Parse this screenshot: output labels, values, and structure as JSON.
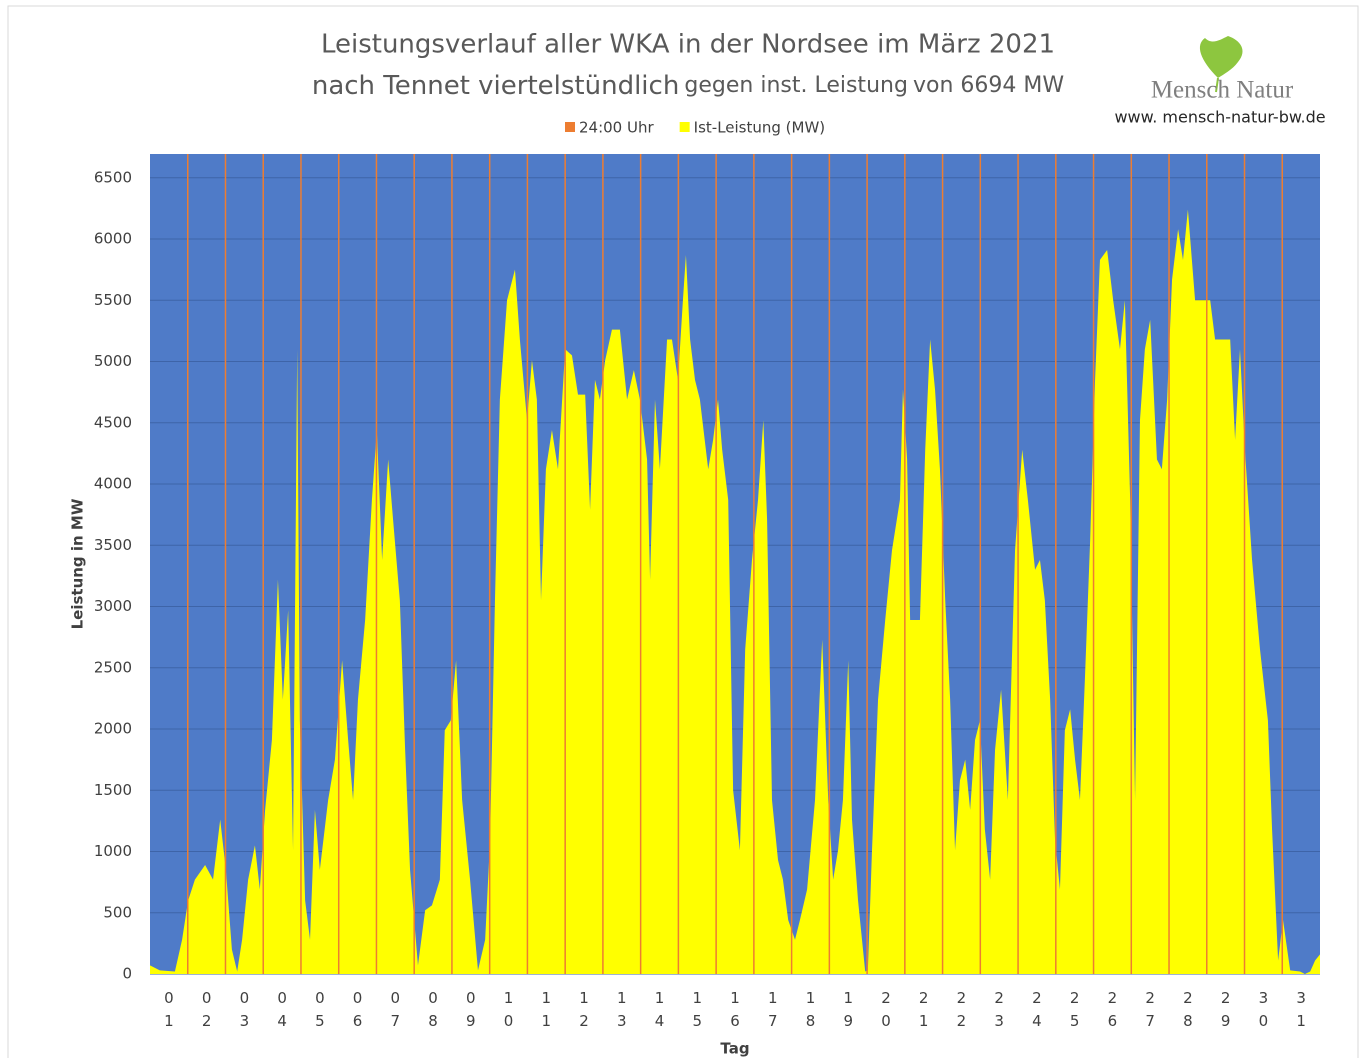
{
  "chart_data": {
    "type": "area",
    "title": "Leistungsverlauf aller WKA in der Nordsee im März 2021",
    "subtitle": [
      "nach Tennet viertelstündlich",
      "gegen inst. Leistung",
      "von 6694 MW"
    ],
    "logo": {
      "name": "Mensch Natur",
      "url": "www. mensch-natur-bw.de"
    },
    "x_label": "Tag",
    "y_label": "Leistung in MW",
    "xlim": [
      0,
      31
    ],
    "xticks": [
      {
        "value": 0.5,
        "label": "01"
      },
      {
        "value": 1.5,
        "label": "02"
      },
      {
        "value": 2.5,
        "label": "03"
      },
      {
        "value": 3.5,
        "label": "04"
      },
      {
        "value": 4.5,
        "label": "05"
      },
      {
        "value": 5.5,
        "label": "06"
      },
      {
        "value": 6.5,
        "label": "07"
      },
      {
        "value": 7.5,
        "label": "08"
      },
      {
        "value": 8.5,
        "label": "09"
      },
      {
        "value": 9.5,
        "label": "10"
      },
      {
        "value": 10.5,
        "label": "11"
      },
      {
        "value": 11.5,
        "label": "12"
      },
      {
        "value": 12.5,
        "label": "13"
      },
      {
        "value": 13.5,
        "label": "14"
      },
      {
        "value": 14.5,
        "label": "15"
      },
      {
        "value": 15.5,
        "label": "16"
      },
      {
        "value": 16.5,
        "label": "17"
      },
      {
        "value": 17.5,
        "label": "18"
      },
      {
        "value": 18.5,
        "label": "19"
      },
      {
        "value": 19.5,
        "label": "20"
      },
      {
        "value": 20.5,
        "label": "21"
      },
      {
        "value": 21.5,
        "label": "22"
      },
      {
        "value": 22.5,
        "label": "23"
      },
      {
        "value": 23.5,
        "label": "24"
      },
      {
        "value": 24.5,
        "label": "25"
      },
      {
        "value": 25.5,
        "label": "26"
      },
      {
        "value": 26.5,
        "label": "27"
      },
      {
        "value": 27.5,
        "label": "28"
      },
      {
        "value": 28.5,
        "label": "29"
      },
      {
        "value": 29.5,
        "label": "30"
      },
      {
        "value": 30.5,
        "label": "31"
      }
    ],
    "ylim": [
      0,
      6694
    ],
    "yticks": [
      0,
      500,
      1000,
      1500,
      2000,
      2500,
      3000,
      3500,
      4000,
      4500,
      5000,
      5500,
      6000,
      6500
    ],
    "grid": true,
    "background": "#4f7bc8",
    "legend": "top",
    "series": [
      {
        "name": "24:00 Uhr",
        "type": "bar",
        "color": "#ed7d31",
        "x": [
          1,
          2,
          3,
          4,
          5,
          6,
          7,
          8,
          9,
          10,
          11,
          12,
          13,
          14,
          15,
          16,
          17,
          18,
          19,
          20,
          21,
          22,
          23,
          24,
          25,
          26,
          27,
          28,
          29,
          30
        ],
        "values": [
          6694,
          6694,
          6694,
          6694,
          6694,
          6694,
          6694,
          6694,
          6694,
          6694,
          6694,
          6694,
          6694,
          6694,
          6694,
          6694,
          6694,
          6694,
          6694,
          6694,
          6694,
          6694,
          6694,
          6694,
          6694,
          6694,
          6694,
          6694,
          6694,
          6694
        ]
      },
      {
        "name": "Ist-Leistung (MW)",
        "type": "area",
        "color": "#ffff00",
        "x": [
          0,
          0.26,
          0.66,
          0.85,
          1.01,
          1.19,
          1.46,
          1.67,
          1.86,
          2.01,
          2.17,
          2.31,
          2.44,
          2.6,
          2.78,
          2.91,
          3.05,
          3.23,
          3.39,
          3.52,
          3.66,
          3.79,
          3.9,
          3.97,
          4.11,
          4.24,
          4.37,
          4.5,
          4.72,
          4.9,
          5.09,
          5.25,
          5.38,
          5.51,
          5.7,
          5.88,
          6.01,
          6.15,
          6.31,
          6.44,
          6.62,
          6.76,
          6.89,
          7.1,
          7.29,
          7.47,
          7.68,
          7.81,
          7.97,
          8.11,
          8.27,
          8.48,
          8.69,
          8.88,
          9.01,
          9.14,
          9.27,
          9.46,
          9.67,
          9.8,
          9.99,
          10.12,
          10.25,
          10.36,
          10.49,
          10.65,
          10.81,
          11,
          11.18,
          11.34,
          11.53,
          11.66,
          11.79,
          11.92,
          12.06,
          12.24,
          12.45,
          12.64,
          12.82,
          12.98,
          13.17,
          13.25,
          13.38,
          13.51,
          13.7,
          13.83,
          13.99,
          14.12,
          14.2,
          14.31,
          14.44,
          14.57,
          14.79,
          14.92,
          15.05,
          15.16,
          15.32,
          15.45,
          15.63,
          15.77,
          15.95,
          16.11,
          16.25,
          16.35,
          16.48,
          16.64,
          16.77,
          16.91,
          17.09,
          17.22,
          17.41,
          17.62,
          17.81,
          17.97,
          18.1,
          18.23,
          18.36,
          18.5,
          18.6,
          18.76,
          18.95,
          19.02,
          19.13,
          19.29,
          19.48,
          19.66,
          19.87,
          19.95,
          20.06,
          20.14,
          20.4,
          20.54,
          20.67,
          20.8,
          20.93,
          21.07,
          21.2,
          21.33,
          21.46,
          21.6,
          21.73,
          21.86,
          21.99,
          22.12,
          22.26,
          22.39,
          22.55,
          22.73,
          22.92,
          23.11,
          23.26,
          23.45,
          23.58,
          23.71,
          23.85,
          23.98,
          24.11,
          24.24,
          24.38,
          24.51,
          24.64,
          24.77,
          24.91,
          25.04,
          25.17,
          25.36,
          25.52,
          25.7,
          25.83,
          25.97,
          26.1,
          26.23,
          26.36,
          26.5,
          26.68,
          26.81,
          26.95,
          27.08,
          27.24,
          27.37,
          27.5,
          27.69,
          27.9,
          28.09,
          28.22,
          28.4,
          28.62,
          28.75,
          28.88,
          29.01,
          29.2,
          29.41,
          29.62,
          29.73,
          29.89,
          30.02,
          30.21,
          30.47,
          30.6,
          30.74,
          30.87,
          31
        ],
        "values": [
          70,
          30,
          20,
          280,
          600,
          770,
          890,
          770,
          1260,
          850,
          200,
          20,
          280,
          770,
          1050,
          690,
          1340,
          1910,
          3220,
          2240,
          2970,
          1010,
          5100,
          2070,
          600,
          280,
          1340,
          850,
          1420,
          1750,
          2560,
          1910,
          1420,
          2240,
          2890,
          3870,
          4440,
          3380,
          4200,
          3710,
          3050,
          1830,
          850,
          70,
          520,
          560,
          770,
          1990,
          2070,
          2560,
          1420,
          770,
          30,
          280,
          1090,
          3050,
          4690,
          5500,
          5750,
          5180,
          4520,
          5010,
          4690,
          3050,
          4120,
          4440,
          4120,
          5100,
          5050,
          4730,
          4730,
          3790,
          4850,
          4690,
          5010,
          5260,
          5260,
          4690,
          4930,
          4690,
          4200,
          3220,
          4690,
          4120,
          5180,
          5180,
          4850,
          5500,
          5870,
          5180,
          4850,
          4690,
          4120,
          4360,
          4690,
          4280,
          3870,
          1500,
          1010,
          2650,
          3380,
          3870,
          4520,
          3710,
          1420,
          930,
          770,
          440,
          280,
          440,
          690,
          1420,
          2730,
          1420,
          770,
          1010,
          1420,
          2560,
          1260,
          600,
          20,
          30,
          1010,
          2240,
          2890,
          3460,
          3870,
          4770,
          4200,
          2890,
          2890,
          4280,
          5180,
          4770,
          4120,
          3050,
          2240,
          1010,
          1580,
          1750,
          1340,
          1910,
          2070,
          1180,
          770,
          1830,
          2320,
          1420,
          3460,
          4280,
          3870,
          3300,
          3380,
          3050,
          2240,
          1090,
          690,
          1990,
          2160,
          1750,
          1420,
          2400,
          3540,
          4850,
          5830,
          5910,
          5500,
          5100,
          5500,
          3870,
          1420,
          4520,
          5100,
          5340,
          4200,
          4120,
          4690,
          5670,
          6080,
          5830,
          6240,
          5500,
          5500,
          5500,
          5180,
          5180,
          5180,
          4360,
          5100,
          4280,
          3380,
          2650,
          2070,
          1180,
          110,
          440,
          30,
          20,
          0,
          20,
          110,
          160
        ]
      }
    ]
  }
}
